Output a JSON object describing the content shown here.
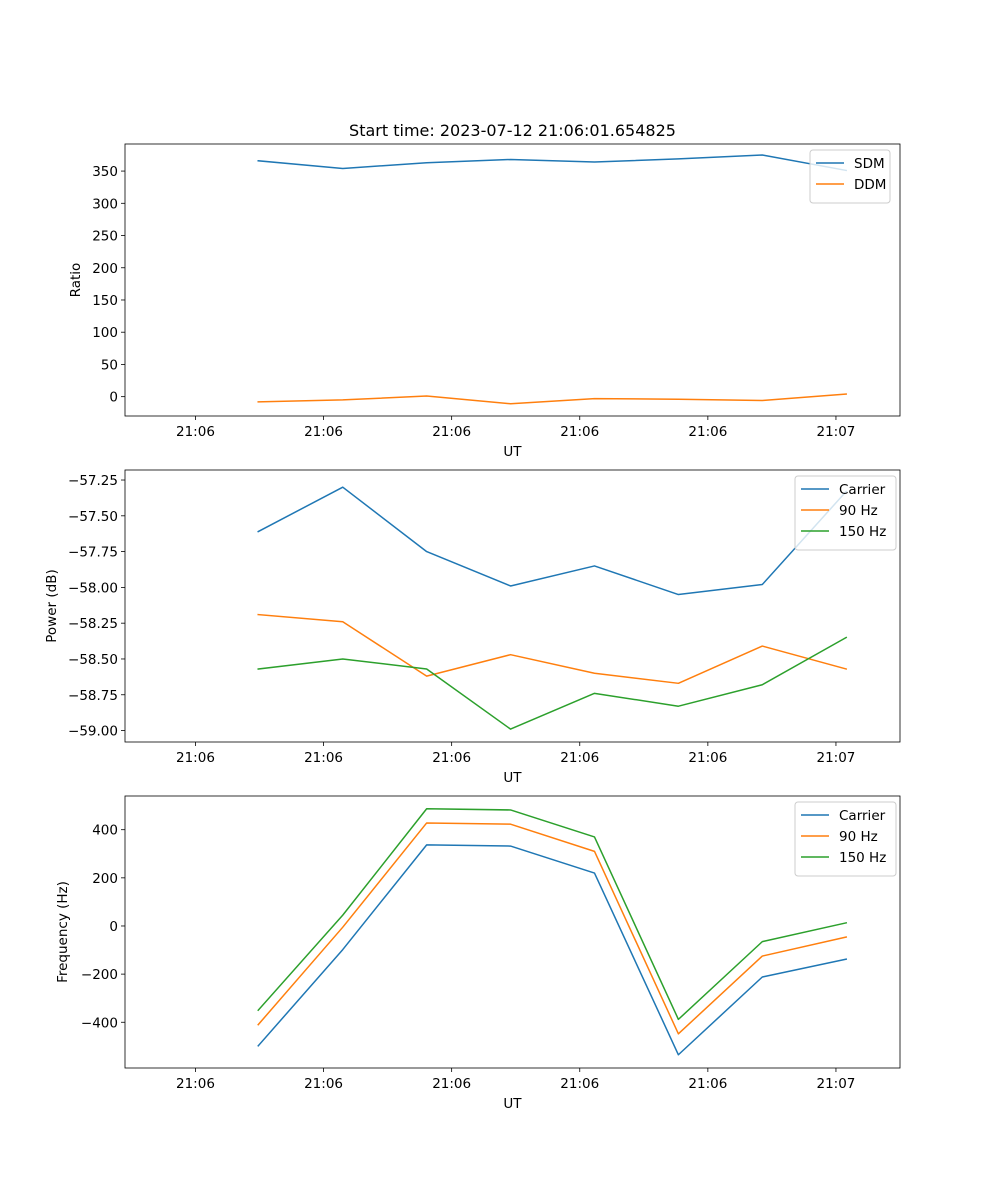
{
  "chart_data": [
    {
      "type": "line",
      "title": "Start time: 2023-07-12 21:06:01.654825",
      "xlabel": "UT",
      "ylabel": "Ratio",
      "xlim": [
        -0.11,
        1.1
      ],
      "ylim": [
        -30,
        392
      ],
      "xticks": [
        0,
        0.2,
        0.4,
        0.6,
        0.8,
        1.0
      ],
      "xtick_labels": [
        "21:06",
        "21:06",
        "21:06",
        "21:06",
        "21:06",
        "21:07"
      ],
      "yticks": [
        0,
        50,
        100,
        150,
        200,
        250,
        300,
        350
      ],
      "ytick_labels": [
        "0",
        "50",
        "100",
        "150",
        "200",
        "250",
        "300",
        "350"
      ],
      "legend": "top-right",
      "x": [
        0.098,
        0.23,
        0.361,
        0.492,
        0.623,
        0.754,
        0.885,
        1.016
      ],
      "series": [
        {
          "name": "SDM",
          "color": "#1f77b4",
          "values": [
            366,
            354,
            363,
            368,
            364,
            369,
            375,
            351
          ]
        },
        {
          "name": "DDM",
          "color": "#ff7f0e",
          "values": [
            -8,
            -5,
            1,
            -11,
            -3,
            -4,
            -6,
            4
          ]
        }
      ]
    },
    {
      "type": "line",
      "title": "",
      "xlabel": "UT",
      "ylabel": "Power (dB)",
      "xlim": [
        -0.11,
        1.1
      ],
      "ylim": [
        -59.08,
        -57.18
      ],
      "xticks": [
        0,
        0.2,
        0.4,
        0.6,
        0.8,
        1.0
      ],
      "xtick_labels": [
        "21:06",
        "21:06",
        "21:06",
        "21:06",
        "21:06",
        "21:07"
      ],
      "yticks": [
        -59.0,
        -58.75,
        -58.5,
        -58.25,
        -58.0,
        -57.75,
        -57.5,
        -57.25
      ],
      "ytick_labels": [
        "−59.00",
        "−58.75",
        "−58.50",
        "−58.25",
        "−58.00",
        "−57.75",
        "−57.50",
        "−57.25"
      ],
      "legend": "top-right",
      "x": [
        0.098,
        0.23,
        0.361,
        0.492,
        0.623,
        0.754,
        0.885,
        1.016
      ],
      "series": [
        {
          "name": "Carrier",
          "color": "#1f77b4",
          "values": [
            -57.61,
            -57.3,
            -57.75,
            -57.99,
            -57.85,
            -58.05,
            -57.98,
            -57.33
          ]
        },
        {
          "name": "90 Hz",
          "color": "#ff7f0e",
          "values": [
            -58.19,
            -58.24,
            -58.62,
            -58.47,
            -58.6,
            -58.67,
            -58.41,
            -58.57
          ]
        },
        {
          "name": "150 Hz",
          "color": "#2ca02c",
          "values": [
            -58.57,
            -58.5,
            -58.57,
            -58.99,
            -58.74,
            -58.83,
            -58.68,
            -58.35
          ]
        }
      ]
    },
    {
      "type": "line",
      "title": "",
      "xlabel": "UT",
      "ylabel": "Frequency (Hz)",
      "xlim": [
        -0.11,
        1.1
      ],
      "ylim": [
        -590,
        540
      ],
      "xticks": [
        0,
        0.2,
        0.4,
        0.6,
        0.8,
        1.0
      ],
      "xtick_labels": [
        "21:06",
        "21:06",
        "21:06",
        "21:06",
        "21:06",
        "21:07"
      ],
      "yticks": [
        -400,
        -200,
        0,
        200,
        400
      ],
      "ytick_labels": [
        "−400",
        "−200",
        "0",
        "200",
        "400"
      ],
      "legend": "top-right",
      "x": [
        0.098,
        0.23,
        0.361,
        0.492,
        0.623,
        0.754,
        0.885,
        1.016
      ],
      "series": [
        {
          "name": "Carrier",
          "color": "#1f77b4",
          "values": [
            -498,
            -98,
            337,
            332,
            220,
            -535,
            -212,
            -138
          ]
        },
        {
          "name": "90 Hz",
          "color": "#ff7f0e",
          "values": [
            -410,
            -5,
            428,
            423,
            310,
            -448,
            -125,
            -46
          ]
        },
        {
          "name": "150 Hz",
          "color": "#2ca02c",
          "values": [
            -350,
            45,
            487,
            482,
            370,
            -388,
            -65,
            13
          ]
        }
      ]
    }
  ]
}
